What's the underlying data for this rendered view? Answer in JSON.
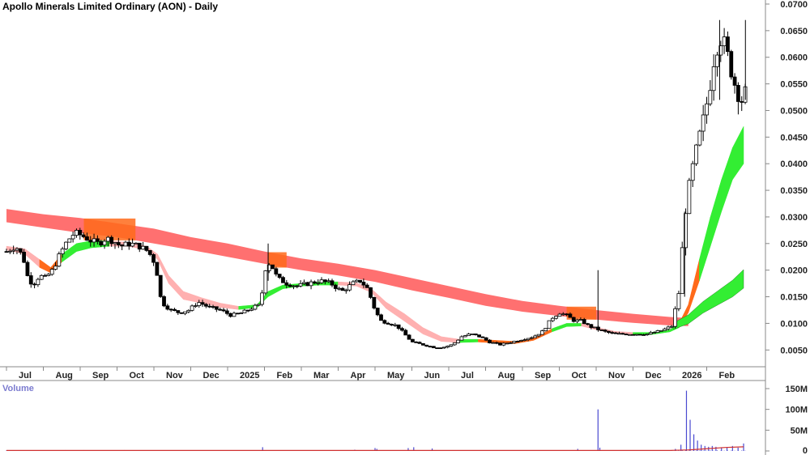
{
  "chart_data": {
    "type": "candlestick",
    "title": "Apollo Minerals Limited Ordinary (AON) - Daily",
    "volume_label": "Volume",
    "price_ylim": [
      0.002,
      0.07
    ],
    "price_ticks": [
      "0.0700",
      "0.0650",
      "0.0600",
      "0.0550",
      "0.0500",
      "0.0450",
      "0.0400",
      "0.0350",
      "0.0300",
      "0.0250",
      "0.0200",
      "0.0150",
      "0.0100",
      "0.0050"
    ],
    "volume_ylim": [
      0,
      150
    ],
    "volume_ticks": [
      "150M",
      "100M",
      "50M",
      "0"
    ],
    "x_months": [
      "Jul",
      "Aug",
      "Sep",
      "Oct",
      "Nov",
      "Dec",
      "2025",
      "Feb",
      "Mar",
      "Apr",
      "May",
      "Jun",
      "Jul",
      "Aug",
      "Sep",
      "Oct",
      "Nov",
      "Dec",
      "2026",
      "Feb"
    ],
    "x_month_index": [
      0,
      1,
      2,
      3,
      4,
      5,
      6,
      7,
      8,
      9,
      10,
      11,
      12,
      13,
      14,
      15,
      16,
      17,
      18,
      19
    ],
    "price_path": [
      [
        0,
        0.0235
      ],
      [
        0.25,
        0.0245
      ],
      [
        0.45,
        0.0225
      ],
      [
        0.6,
        0.018
      ],
      [
        0.75,
        0.0175
      ],
      [
        0.9,
        0.019
      ],
      [
        1.05,
        0.0185
      ],
      [
        1.25,
        0.02
      ],
      [
        1.45,
        0.023
      ],
      [
        1.65,
        0.0255
      ],
      [
        1.85,
        0.027
      ],
      [
        2.05,
        0.0265
      ],
      [
        2.3,
        0.0255
      ],
      [
        2.5,
        0.025
      ],
      [
        2.7,
        0.026
      ],
      [
        2.9,
        0.0255
      ],
      [
        3.1,
        0.0245
      ],
      [
        3.35,
        0.025
      ],
      [
        3.6,
        0.0245
      ],
      [
        3.85,
        0.0235
      ],
      [
        4.05,
        0.021
      ],
      [
        4.2,
        0.014
      ],
      [
        4.45,
        0.0125
      ],
      [
        4.7,
        0.012
      ],
      [
        4.95,
        0.0125
      ],
      [
        5.2,
        0.014
      ],
      [
        5.5,
        0.013
      ],
      [
        5.8,
        0.0125
      ],
      [
        6.1,
        0.0115
      ],
      [
        6.4,
        0.012
      ],
      [
        6.7,
        0.013
      ],
      [
        6.9,
        0.0135
      ],
      [
        7.0,
        0.02
      ],
      [
        7.15,
        0.0215
      ],
      [
        7.35,
        0.0185
      ],
      [
        7.6,
        0.0175
      ],
      [
        7.9,
        0.017
      ],
      [
        8.2,
        0.0175
      ],
      [
        8.5,
        0.018
      ],
      [
        8.8,
        0.0175
      ],
      [
        9.1,
        0.016
      ],
      [
        9.4,
        0.0175
      ],
      [
        9.6,
        0.018
      ],
      [
        9.8,
        0.0165
      ],
      [
        10.0,
        0.0125
      ],
      [
        10.15,
        0.0105
      ],
      [
        10.4,
        0.01
      ],
      [
        10.6,
        0.0095
      ],
      [
        10.8,
        0.008
      ],
      [
        11.0,
        0.0065
      ],
      [
        11.3,
        0.006
      ],
      [
        11.6,
        0.0055
      ],
      [
        11.85,
        0.0055
      ],
      [
        12.1,
        0.006
      ],
      [
        12.35,
        0.0075
      ],
      [
        12.6,
        0.008
      ],
      [
        12.85,
        0.0075
      ],
      [
        13.1,
        0.0065
      ],
      [
        13.4,
        0.006
      ],
      [
        13.7,
        0.0065
      ],
      [
        14.0,
        0.007
      ],
      [
        14.3,
        0.0075
      ],
      [
        14.55,
        0.0085
      ],
      [
        14.8,
        0.011
      ],
      [
        15.0,
        0.012
      ],
      [
        15.2,
        0.0115
      ],
      [
        15.4,
        0.0105
      ],
      [
        15.6,
        0.0105
      ],
      [
        15.8,
        0.0095
      ],
      [
        16.0,
        0.009
      ],
      [
        16.2,
        0.0085
      ],
      [
        16.5,
        0.008
      ],
      [
        16.8,
        0.008
      ],
      [
        17.1,
        0.008
      ],
      [
        17.4,
        0.008
      ],
      [
        17.7,
        0.0085
      ],
      [
        17.9,
        0.009
      ],
      [
        18.05,
        0.0095
      ],
      [
        18.25,
        0.016
      ],
      [
        18.4,
        0.03
      ],
      [
        18.55,
        0.037
      ],
      [
        18.7,
        0.042
      ],
      [
        18.9,
        0.048
      ],
      [
        19.05,
        0.053
      ],
      [
        19.2,
        0.06
      ],
      [
        19.35,
        0.064
      ],
      [
        19.5,
        0.062
      ],
      [
        19.65,
        0.058
      ],
      [
        19.8,
        0.054
      ],
      [
        19.95,
        0.052
      ],
      [
        20.1,
        0.054
      ]
    ],
    "volume_spikes": [
      [
        1.6,
        2
      ],
      [
        2.1,
        2
      ],
      [
        3.2,
        2
      ],
      [
        6.95,
        9
      ],
      [
        9.45,
        3
      ],
      [
        10.0,
        7
      ],
      [
        10.05,
        5
      ],
      [
        10.9,
        7
      ],
      [
        11.05,
        9
      ],
      [
        11.55,
        6
      ],
      [
        15.5,
        5
      ],
      [
        16.05,
        100
      ],
      [
        16.1,
        8
      ],
      [
        18.15,
        5
      ],
      [
        18.3,
        15
      ],
      [
        18.45,
        145
      ],
      [
        18.55,
        75
      ],
      [
        18.65,
        40
      ],
      [
        18.75,
        25
      ],
      [
        18.85,
        15
      ],
      [
        18.95,
        12
      ],
      [
        19.05,
        10
      ],
      [
        19.15,
        12
      ],
      [
        19.25,
        10
      ],
      [
        19.4,
        8
      ],
      [
        19.55,
        8
      ],
      [
        19.7,
        12
      ],
      [
        19.85,
        8
      ],
      [
        20.0,
        18
      ]
    ],
    "ma_long_band": [
      [
        0,
        0.0315,
        0.029
      ],
      [
        1,
        0.0305,
        0.028
      ],
      [
        2,
        0.0298,
        0.027
      ],
      [
        3,
        0.0288,
        0.0262
      ],
      [
        4,
        0.0278,
        0.025
      ],
      [
        5,
        0.0262,
        0.0238
      ],
      [
        6,
        0.025,
        0.0225
      ],
      [
        7,
        0.0235,
        0.0212
      ],
      [
        8,
        0.0222,
        0.02
      ],
      [
        9,
        0.0212,
        0.019
      ],
      [
        10,
        0.02,
        0.0178
      ],
      [
        11,
        0.0185,
        0.0162
      ],
      [
        12,
        0.017,
        0.0148
      ],
      [
        13,
        0.0155,
        0.0133
      ],
      [
        14,
        0.0142,
        0.0122
      ],
      [
        15,
        0.0133,
        0.0114
      ],
      [
        16,
        0.0125,
        0.0107
      ],
      [
        17,
        0.0118,
        0.0101
      ],
      [
        18,
        0.0112,
        0.0096
      ],
      [
        18.5,
        0.011,
        0.0095
      ]
    ],
    "ma_short_band": [
      [
        0,
        0.0245,
        0.0238
      ],
      [
        0.5,
        0.024,
        0.023
      ],
      [
        0.9,
        0.022,
        0.0205
      ],
      [
        1.2,
        0.0205,
        0.0195
      ],
      [
        1.5,
        0.023,
        0.0215
      ],
      [
        1.9,
        0.025,
        0.0235
      ],
      [
        2.3,
        0.0255,
        0.0242
      ],
      [
        2.8,
        0.0255,
        0.0245
      ],
      [
        3.3,
        0.0252,
        0.0245
      ],
      [
        3.8,
        0.0245,
        0.0238
      ],
      [
        4.1,
        0.023,
        0.022
      ],
      [
        4.4,
        0.019,
        0.0175
      ],
      [
        4.8,
        0.016,
        0.0145
      ],
      [
        5.3,
        0.0148,
        0.0138
      ],
      [
        5.8,
        0.0138,
        0.013
      ],
      [
        6.3,
        0.0132,
        0.0126
      ],
      [
        6.8,
        0.0135,
        0.013
      ],
      [
        7.1,
        0.016,
        0.015
      ],
      [
        7.5,
        0.0172,
        0.0165
      ],
      [
        8.0,
        0.0175,
        0.017
      ],
      [
        8.5,
        0.0178,
        0.0172
      ],
      [
        9.0,
        0.0178,
        0.0172
      ],
      [
        9.5,
        0.0176,
        0.017
      ],
      [
        9.9,
        0.0165,
        0.0158
      ],
      [
        10.3,
        0.014,
        0.0128
      ],
      [
        10.8,
        0.0118,
        0.0104
      ],
      [
        11.3,
        0.0092,
        0.008
      ],
      [
        11.8,
        0.0075,
        0.0066
      ],
      [
        12.3,
        0.007,
        0.0064
      ],
      [
        12.8,
        0.007,
        0.0065
      ],
      [
        13.3,
        0.0068,
        0.0063
      ],
      [
        13.8,
        0.0066,
        0.0062
      ],
      [
        14.3,
        0.0072,
        0.0068
      ],
      [
        14.8,
        0.009,
        0.0084
      ],
      [
        15.2,
        0.01,
        0.0094
      ],
      [
        15.6,
        0.01,
        0.0095
      ],
      [
        16.0,
        0.0093,
        0.0088
      ],
      [
        16.5,
        0.0085,
        0.0081
      ],
      [
        17.0,
        0.0083,
        0.0079
      ],
      [
        17.5,
        0.0083,
        0.0079
      ],
      [
        18.0,
        0.0088,
        0.0084
      ],
      [
        18.25,
        0.01,
        0.0092
      ],
      [
        18.5,
        0.0135,
        0.012
      ],
      [
        18.8,
        0.022,
        0.018
      ],
      [
        19.1,
        0.03,
        0.0245
      ],
      [
        19.4,
        0.037,
        0.031
      ],
      [
        19.7,
        0.043,
        0.037
      ],
      [
        20.0,
        0.047,
        0.04
      ]
    ],
    "ma_mid_line": [
      [
        18.1,
        0.0095
      ],
      [
        18.5,
        0.011
      ],
      [
        18.9,
        0.0135
      ],
      [
        19.3,
        0.0155
      ],
      [
        19.7,
        0.0175
      ],
      [
        20.0,
        0.0195
      ]
    ],
    "colors": {
      "long_band": "#ff7070",
      "short_band_up": "#33ee33",
      "short_band_down": "#ffb0b0",
      "orange": "#ff6a1a",
      "candle": "#000000",
      "volume": "#4a4ad0",
      "volume_avg": "#d03030",
      "grid": "#cccccc"
    }
  }
}
